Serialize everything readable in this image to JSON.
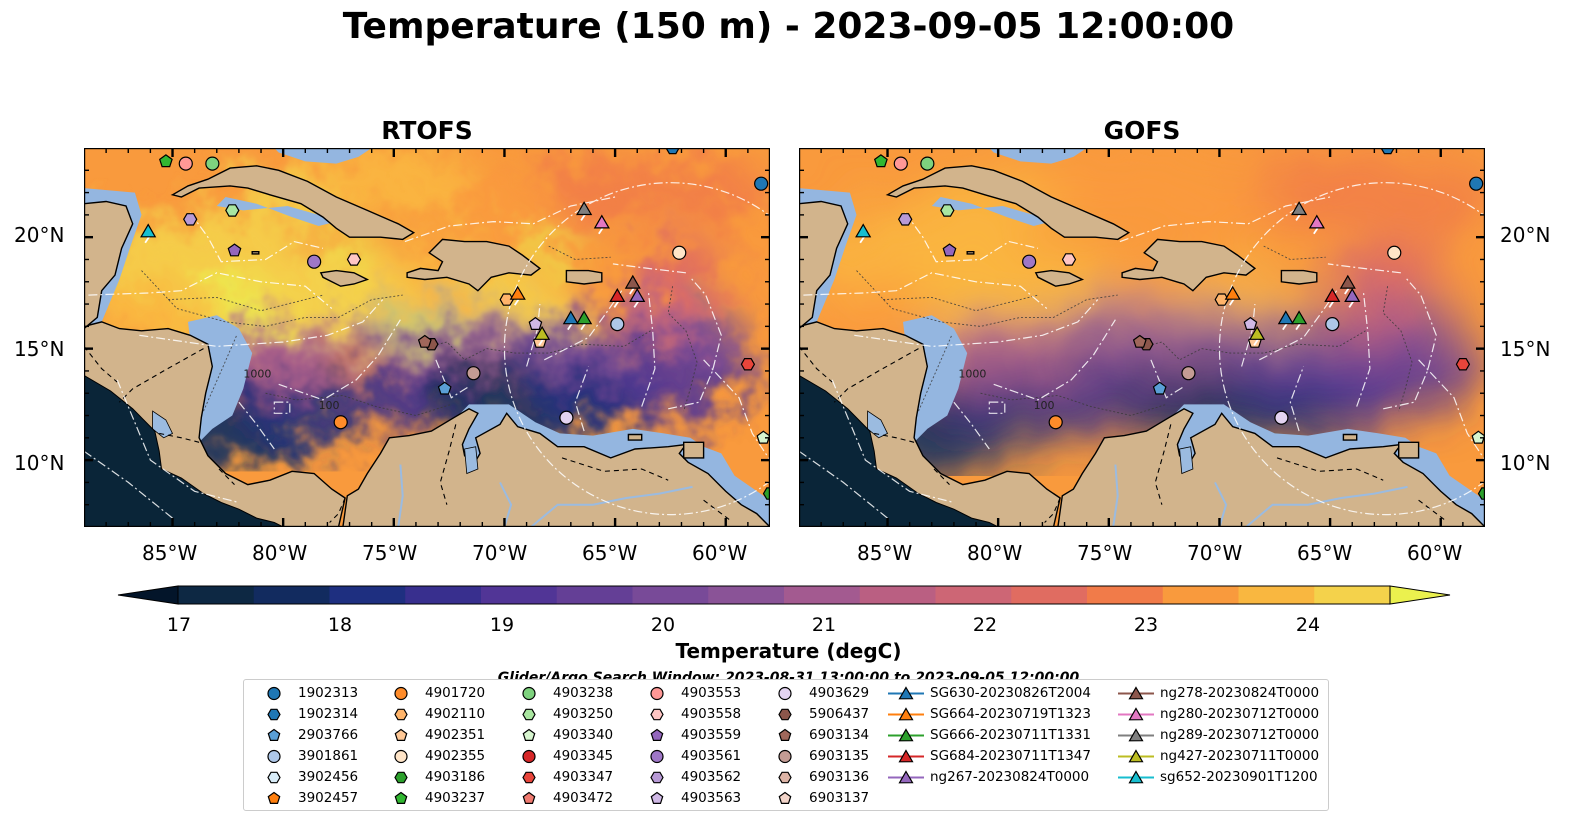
{
  "title": "Temperature (150 m) - 2023-09-05 12:00:00",
  "panels": [
    {
      "title": "RTOFS",
      "style": "rtofs"
    },
    {
      "title": "GOFS",
      "style": "gofs"
    }
  ],
  "axes": {
    "x_ticks": [
      "85°W",
      "80°W",
      "75°W",
      "70°W",
      "65°W",
      "60°W"
    ],
    "y_ticks": [
      "20°N",
      "15°N",
      "10°N"
    ],
    "lon_range": [
      -89,
      -58
    ],
    "lat_range": [
      7,
      24
    ]
  },
  "contour_labels": [
    "1000",
    "100"
  ],
  "colorbar": {
    "label": "Temperature (degC)",
    "ticks": [
      "17",
      "18",
      "19",
      "20",
      "21",
      "22",
      "23",
      "24"
    ],
    "range": [
      17,
      24.5
    ],
    "step": 0.5,
    "colors": [
      "#0d2843",
      "#122b5f",
      "#1e2f80",
      "#382f8e",
      "#513596",
      "#643f96",
      "#784a98",
      "#8a5397",
      "#a35a90",
      "#ba5f82",
      "#cd6675",
      "#e06c61",
      "#f17b49",
      "#f99a3d",
      "#f9b740",
      "#f4d24b"
    ],
    "extend_low": "#03152a",
    "extend_high": "#ebf14e"
  },
  "colors": {
    "land": "#d2b48c",
    "shelf": "#94b6e0",
    "ocean_deep": "#0a2538",
    "rivers": "#9bbbe0"
  },
  "search_window": "Glider/Argo Search Window: 2023-08-31 13:00:00 to 2023-09-05 12:00:00",
  "legend": {
    "items": [
      {
        "label": "1902313",
        "shape": "circle",
        "color": "#1f77b4"
      },
      {
        "label": "1902314",
        "shape": "hexagon",
        "color": "#1f77b4"
      },
      {
        "label": "2903766",
        "shape": "pentagon",
        "color": "#5a9fd6"
      },
      {
        "label": "3901861",
        "shape": "circle",
        "color": "#aec7e8"
      },
      {
        "label": "3902456",
        "shape": "hexagon",
        "color": "#d8ecf8"
      },
      {
        "label": "3902457",
        "shape": "pentagon",
        "color": "#ff7f0e"
      },
      {
        "label": "4901720",
        "shape": "circle",
        "color": "#ff8c2a"
      },
      {
        "label": "4902110",
        "shape": "hexagon",
        "color": "#ffb46a"
      },
      {
        "label": "4902351",
        "shape": "pentagon",
        "color": "#ffc896"
      },
      {
        "label": "4902355",
        "shape": "circle",
        "color": "#ffe5c8"
      },
      {
        "label": "4903186",
        "shape": "hexagon",
        "color": "#2ca02c"
      },
      {
        "label": "4903237",
        "shape": "pentagon",
        "color": "#31b731"
      },
      {
        "label": "4903238",
        "shape": "circle",
        "color": "#7ed27e"
      },
      {
        "label": "4903250",
        "shape": "hexagon",
        "color": "#a9e6a0"
      },
      {
        "label": "4903340",
        "shape": "pentagon",
        "color": "#d7f5cf"
      },
      {
        "label": "4903345",
        "shape": "circle",
        "color": "#d62728"
      },
      {
        "label": "4903347",
        "shape": "hexagon",
        "color": "#e8453b"
      },
      {
        "label": "4903472",
        "shape": "pentagon",
        "color": "#f07a70"
      },
      {
        "label": "4903553",
        "shape": "circle",
        "color": "#ff9896"
      },
      {
        "label": "4903558",
        "shape": "hexagon",
        "color": "#ffc6c4"
      },
      {
        "label": "4903559",
        "shape": "pentagon",
        "color": "#9467bd"
      },
      {
        "label": "4903561",
        "shape": "circle",
        "color": "#9f77c7"
      },
      {
        "label": "4903562",
        "shape": "hexagon",
        "color": "#b89ad6"
      },
      {
        "label": "4903563",
        "shape": "pentagon",
        "color": "#d0b9e6"
      },
      {
        "label": "4903629",
        "shape": "circle",
        "color": "#e3d3f1"
      },
      {
        "label": "5906437",
        "shape": "hexagon",
        "color": "#8c564b"
      },
      {
        "label": "6903134",
        "shape": "pentagon",
        "color": "#a0675b"
      },
      {
        "label": "6903135",
        "shape": "circle",
        "color": "#c49c94"
      },
      {
        "label": "6903136",
        "shape": "hexagon",
        "color": "#ddb4a6"
      },
      {
        "label": "6903137",
        "shape": "pentagon",
        "color": "#f3d5ca"
      },
      {
        "label": "SG630-20230826T2004",
        "shape": "triangle",
        "color": "#1f77b4"
      },
      {
        "label": "SG664-20230719T1323",
        "shape": "triangle",
        "color": "#ff7f0e"
      },
      {
        "label": "SG666-20230711T1331",
        "shape": "triangle",
        "color": "#2ca02c"
      },
      {
        "label": "SG684-20230711T1347",
        "shape": "triangle",
        "color": "#d62728"
      },
      {
        "label": "ng267-20230824T0000",
        "shape": "triangle",
        "color": "#9467bd"
      },
      {
        "label": "ng278-20230824T0000",
        "shape": "triangle",
        "color": "#8c564b"
      },
      {
        "label": "ng280-20230712T0000",
        "shape": "triangle",
        "color": "#e377c2"
      },
      {
        "label": "ng289-20230712T0000",
        "shape": "triangle",
        "color": "#7f7f7f"
      },
      {
        "label": "ng427-20230711T0000",
        "shape": "triangle",
        "color": "#bcbd22"
      },
      {
        "label": "sg652-20230901T1200",
        "shape": "triangle",
        "color": "#17becf"
      }
    ]
  },
  "markers": [
    {
      "label": "1902313",
      "lon": -58.4,
      "lat": 22.4
    },
    {
      "label": "1902314",
      "lon": -62.4,
      "lat": 24.0
    },
    {
      "label": "2903766",
      "lon": -72.7,
      "lat": 13.2
    },
    {
      "label": "3901861",
      "lon": -64.9,
      "lat": 16.1
    },
    {
      "label": "4901720",
      "lon": -77.4,
      "lat": 11.7
    },
    {
      "label": "4902110",
      "lon": -69.9,
      "lat": 17.2
    },
    {
      "label": "4902351",
      "lon": -68.4,
      "lat": 15.3
    },
    {
      "label": "4902355",
      "lon": -62.1,
      "lat": 19.3
    },
    {
      "label": "4903186",
      "lon": -58.0,
      "lat": 8.5
    },
    {
      "label": "4903237",
      "lon": -85.3,
      "lat": 23.4
    },
    {
      "label": "4903238",
      "lon": -83.2,
      "lat": 23.3
    },
    {
      "label": "4903250",
      "lon": -82.3,
      "lat": 21.2
    },
    {
      "label": "4903340",
      "lon": -58.3,
      "lat": 11.0
    },
    {
      "label": "4903347",
      "lon": -59.0,
      "lat": 14.3
    },
    {
      "label": "4903553",
      "lon": -84.4,
      "lat": 23.3
    },
    {
      "label": "4903558",
      "lon": -76.8,
      "lat": 19.0
    },
    {
      "label": "4903559",
      "lon": -82.2,
      "lat": 19.4
    },
    {
      "label": "4903561",
      "lon": -78.6,
      "lat": 18.9
    },
    {
      "label": "4903562",
      "lon": -84.2,
      "lat": 20.8
    },
    {
      "label": "4903563",
      "lon": -68.6,
      "lat": 16.1
    },
    {
      "label": "4903629",
      "lon": -67.2,
      "lat": 11.9
    },
    {
      "label": "5906437",
      "lon": -73.3,
      "lat": 15.2
    },
    {
      "label": "6903134",
      "lon": -73.6,
      "lat": 15.3
    },
    {
      "label": "6903135",
      "lon": -71.4,
      "lat": 13.9
    },
    {
      "label": "SG630-20230826T2004",
      "lon": -67.0,
      "lat": 16.3
    },
    {
      "label": "SG664-20230719T1323",
      "lon": -69.4,
      "lat": 17.4
    },
    {
      "label": "SG666-20230711T1331",
      "lon": -66.4,
      "lat": 16.3
    },
    {
      "label": "SG684-20230711T1347",
      "lon": -64.9,
      "lat": 17.3
    },
    {
      "label": "ng267-20230824T0000",
      "lon": -64.0,
      "lat": 17.3
    },
    {
      "label": "ng278-20230824T0000",
      "lon": -64.2,
      "lat": 17.9
    },
    {
      "label": "ng280-20230712T0000",
      "lon": -65.6,
      "lat": 20.6
    },
    {
      "label": "ng289-20230712T0000",
      "lon": -66.4,
      "lat": 21.2
    },
    {
      "label": "ng427-20230711T0000",
      "lon": -68.3,
      "lat": 15.6
    },
    {
      "label": "sg652-20230901T1200",
      "lon": -86.1,
      "lat": 20.2
    }
  ]
}
